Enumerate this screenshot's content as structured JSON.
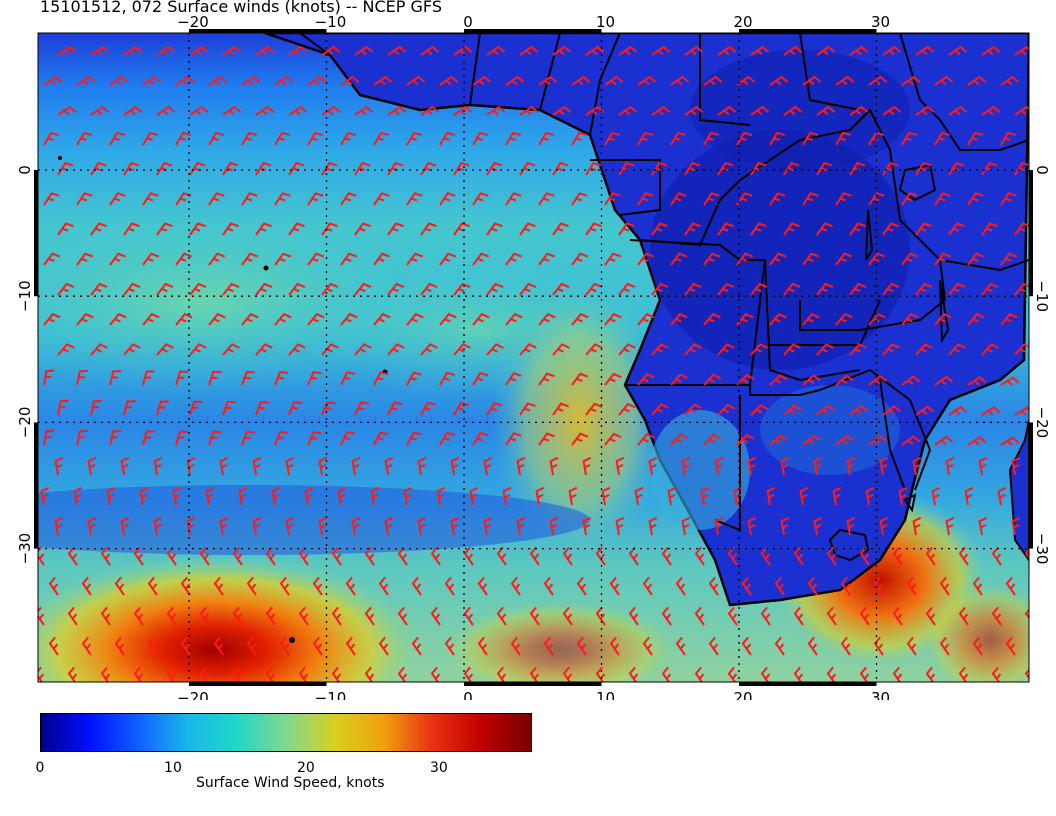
{
  "title": "15101512, 072 Surface winds (knots) -- NCEP GFS",
  "map": {
    "lon_ticks": [
      -20,
      -10,
      0,
      10,
      20,
      30
    ],
    "lat_ticks": [
      0,
      -10,
      -20,
      -30
    ],
    "lon_labels": [
      "−20",
      "−10",
      "0",
      "10",
      "20",
      "30"
    ],
    "lat_labels": [
      "0",
      "−10",
      "−20",
      "−30"
    ],
    "barb_color": "#ff1a1a",
    "coast_color": "#000000"
  },
  "colorbar": {
    "title": "Surface Wind Speed, knots",
    "tick_labels": [
      "0",
      "10",
      "20",
      "30"
    ],
    "tick_values": [
      0,
      10,
      20,
      30
    ],
    "range": [
      0,
      37
    ],
    "colors": [
      "#00008c",
      "#0010ff",
      "#1060ff",
      "#18b8e8",
      "#20d8c8",
      "#80d890",
      "#d8d020",
      "#f0a010",
      "#e83010",
      "#c00000",
      "#780000"
    ]
  }
}
